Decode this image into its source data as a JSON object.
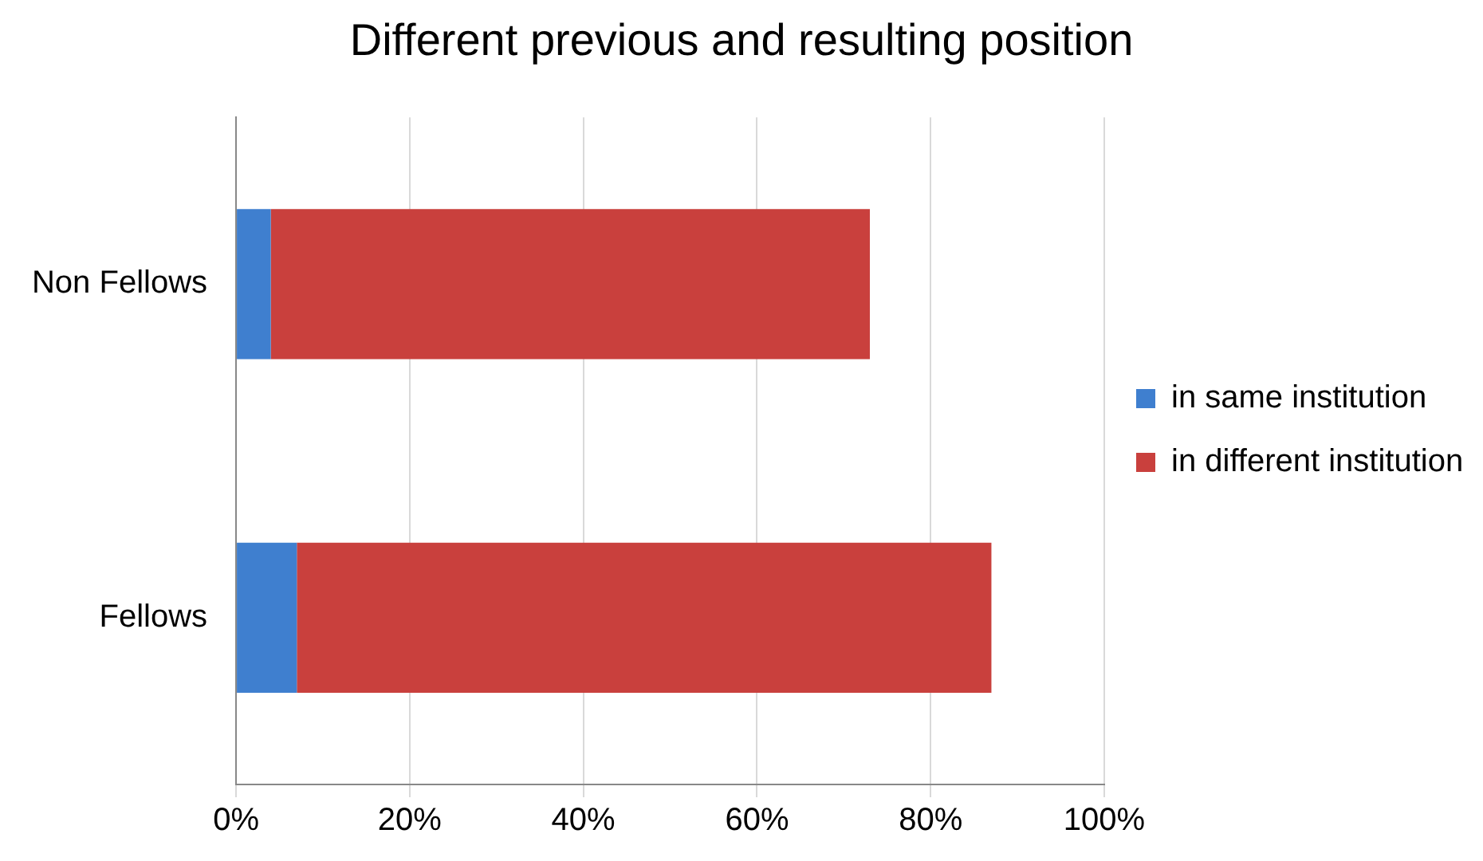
{
  "chart_data": {
    "type": "bar",
    "orientation": "horizontal",
    "stacked": true,
    "title": "Different previous and resulting position",
    "categories": [
      "Non Fellows",
      "Fellows"
    ],
    "series": [
      {
        "name": "in same institution",
        "color": "#3f7fcf",
        "values": [
          4,
          7
        ]
      },
      {
        "name": "in different institution",
        "color": "#c9403d",
        "values": [
          69,
          80
        ]
      }
    ],
    "xlim": [
      0,
      100
    ],
    "xticks": [
      {
        "value": 0,
        "label": "0%"
      },
      {
        "value": 20,
        "label": "20%"
      },
      {
        "value": 40,
        "label": "40%"
      },
      {
        "value": 60,
        "label": "60%"
      },
      {
        "value": 80,
        "label": "80%"
      },
      {
        "value": 100,
        "label": "100%"
      }
    ],
    "grid": "x",
    "legend": "right"
  }
}
